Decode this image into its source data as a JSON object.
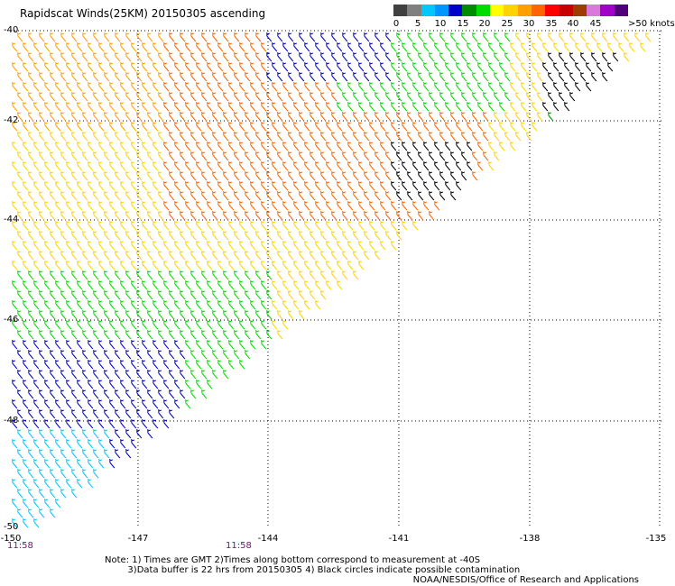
{
  "title": "Rapidscat Winds(25KM) 20150305 ascending",
  "legend": {
    "labels": [
      "0",
      "5",
      "10",
      "15",
      "20",
      "25",
      "30",
      "35",
      "40",
      "45",
      ">50 knots"
    ],
    "colors": [
      "#404040",
      "#808080",
      "#00c8ff",
      "#0096ff",
      "#0000c8",
      "#008c00",
      "#00dc00",
      "#ffff00",
      "#ffd200",
      "#ffa000",
      "#ff6400",
      "#ff0000",
      "#c80000",
      "#a03c00",
      "#dc78dc",
      "#a000c8",
      "#500078"
    ]
  },
  "axes": {
    "lat_labels": [
      "-40",
      "-42",
      "-44",
      "-46",
      "-48",
      "-50"
    ],
    "lon_labels": [
      "-150",
      "-147",
      "-144",
      "-141",
      "-138",
      "-135"
    ],
    "times": [
      "11:58",
      "11:58"
    ]
  },
  "notes": {
    "line1": "Note: 1) Times are GMT 2)Times along bottom correspond to measurement at -40S",
    "line2": "        3)Data buffer is 22 hrs from 20150305 4) Black circles indicate possible contamination"
  },
  "credit": "NOAA/NESDIS/Office of Research and Applications"
}
